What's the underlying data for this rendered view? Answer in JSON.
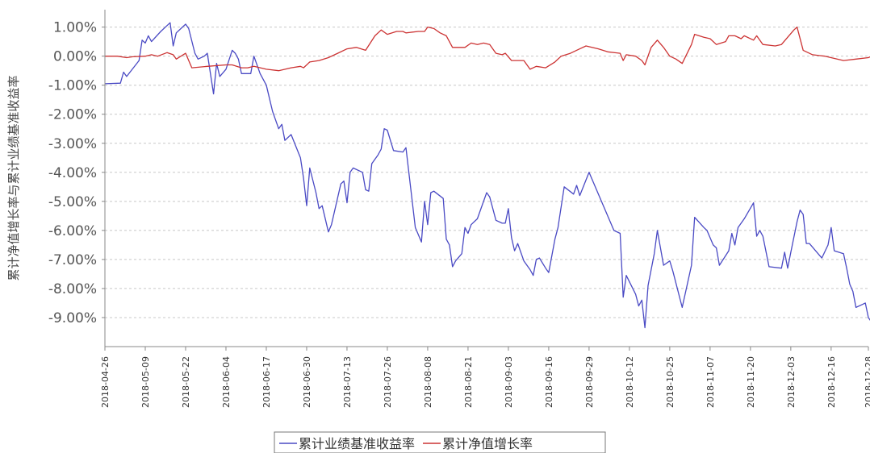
{
  "chart_data": {
    "type": "line",
    "title": "",
    "xlabel": "",
    "ylabel": "累计净值增长率与累计业绩基准收益率",
    "y_unit": "%",
    "ylim": [
      -10.0,
      1.6
    ],
    "grid": true,
    "legend_position": "bottom",
    "y_ticks": [
      "1.00%",
      "0.00%",
      "-1.00%",
      "-2.00%",
      "-3.00%",
      "-4.00%",
      "-5.00%",
      "-6.00%",
      "-7.00%",
      "-8.00%",
      "-9.00%"
    ],
    "y_tick_values": [
      1,
      0,
      -1,
      -2,
      -3,
      -4,
      -5,
      -6,
      -7,
      -8,
      -9
    ],
    "x_ticks": [
      "2018-04-26",
      "2018-05-09",
      "2018-05-22",
      "2018-06-04",
      "2018-06-17",
      "2018-06-30",
      "2018-07-13",
      "2018-07-26",
      "2018-08-08",
      "2018-08-21",
      "2018-09-03",
      "2018-09-16",
      "2018-09-29",
      "2018-10-12",
      "2018-10-25",
      "2018-11-07",
      "2018-11-20",
      "2018-12-03",
      "2018-12-16",
      "2018-12-28"
    ],
    "x_range": [
      "2018-04-26",
      "2018-12-28"
    ],
    "series": [
      {
        "name": "累计业绩基准收益率",
        "color": "#4a4ac4",
        "points": [
          [
            "2018-04-26",
            -0.95
          ],
          [
            "2018-05-01",
            -0.93
          ],
          [
            "2018-05-02",
            -0.55
          ],
          [
            "2018-05-03",
            -0.7
          ],
          [
            "2018-05-07",
            -0.15
          ],
          [
            "2018-05-08",
            0.55
          ],
          [
            "2018-05-09",
            0.45
          ],
          [
            "2018-05-10",
            0.7
          ],
          [
            "2018-05-11",
            0.5
          ],
          [
            "2018-05-14",
            0.85
          ],
          [
            "2018-05-17",
            1.15
          ],
          [
            "2018-05-18",
            0.35
          ],
          [
            "2018-05-19",
            0.8
          ],
          [
            "2018-05-21",
            1.0
          ],
          [
            "2018-05-22",
            1.1
          ],
          [
            "2018-05-23",
            0.95
          ],
          [
            "2018-05-25",
            0.1
          ],
          [
            "2018-05-26",
            -0.1
          ],
          [
            "2018-05-28",
            0.0
          ],
          [
            "2018-05-29",
            0.1
          ],
          [
            "2018-05-31",
            -1.3
          ],
          [
            "2018-06-01",
            -0.25
          ],
          [
            "2018-06-02",
            -0.7
          ],
          [
            "2018-06-04",
            -0.45
          ],
          [
            "2018-06-06",
            0.2
          ],
          [
            "2018-06-07",
            0.1
          ],
          [
            "2018-06-08",
            -0.1
          ],
          [
            "2018-06-09",
            -0.6
          ],
          [
            "2018-06-12",
            -0.6
          ],
          [
            "2018-06-13",
            0.0
          ],
          [
            "2018-06-15",
            -0.6
          ],
          [
            "2018-06-17",
            -1.0
          ],
          [
            "2018-06-19",
            -1.9
          ],
          [
            "2018-06-21",
            -2.5
          ],
          [
            "2018-06-22",
            -2.35
          ],
          [
            "2018-06-23",
            -2.9
          ],
          [
            "2018-06-25",
            -2.7
          ],
          [
            "2018-06-28",
            -3.5
          ],
          [
            "2018-06-29",
            -4.2
          ],
          [
            "2018-06-30",
            -5.15
          ],
          [
            "2018-07-01",
            -3.85
          ],
          [
            "2018-07-03",
            -4.7
          ],
          [
            "2018-07-04",
            -5.25
          ],
          [
            "2018-07-05",
            -5.15
          ],
          [
            "2018-07-07",
            -6.05
          ],
          [
            "2018-07-08",
            -5.8
          ],
          [
            "2018-07-11",
            -4.4
          ],
          [
            "2018-07-12",
            -4.3
          ],
          [
            "2018-07-13",
            -5.05
          ],
          [
            "2018-07-14",
            -4.0
          ],
          [
            "2018-07-15",
            -3.85
          ],
          [
            "2018-07-18",
            -4.0
          ],
          [
            "2018-07-19",
            -4.6
          ],
          [
            "2018-07-20",
            -4.65
          ],
          [
            "2018-07-21",
            -3.7
          ],
          [
            "2018-07-23",
            -3.4
          ],
          [
            "2018-07-24",
            -3.2
          ],
          [
            "2018-07-25",
            -2.5
          ],
          [
            "2018-07-26",
            -2.55
          ],
          [
            "2018-07-28",
            -3.25
          ],
          [
            "2018-07-31",
            -3.3
          ],
          [
            "2018-08-01",
            -3.15
          ],
          [
            "2018-08-04",
            -5.9
          ],
          [
            "2018-08-06",
            -6.4
          ],
          [
            "2018-08-07",
            -5.0
          ],
          [
            "2018-08-08",
            -5.8
          ],
          [
            "2018-08-09",
            -4.7
          ],
          [
            "2018-08-10",
            -4.65
          ],
          [
            "2018-08-13",
            -4.9
          ],
          [
            "2018-08-14",
            -6.3
          ],
          [
            "2018-08-15",
            -6.5
          ],
          [
            "2018-08-16",
            -7.25
          ],
          [
            "2018-08-17",
            -7.05
          ],
          [
            "2018-08-19",
            -6.8
          ],
          [
            "2018-08-20",
            -5.9
          ],
          [
            "2018-08-21",
            -6.1
          ],
          [
            "2018-08-22",
            -5.8
          ],
          [
            "2018-08-24",
            -5.6
          ],
          [
            "2018-08-27",
            -4.7
          ],
          [
            "2018-08-28",
            -4.85
          ],
          [
            "2018-08-30",
            -5.65
          ],
          [
            "2018-09-01",
            -5.75
          ],
          [
            "2018-09-02",
            -5.75
          ],
          [
            "2018-09-03",
            -5.25
          ],
          [
            "2018-09-04",
            -6.25
          ],
          [
            "2018-09-05",
            -6.7
          ],
          [
            "2018-09-06",
            -6.45
          ],
          [
            "2018-09-08",
            -7.05
          ],
          [
            "2018-09-10",
            -7.35
          ],
          [
            "2018-09-11",
            -7.55
          ],
          [
            "2018-09-12",
            -7.0
          ],
          [
            "2018-09-13",
            -6.95
          ],
          [
            "2018-09-15",
            -7.3
          ],
          [
            "2018-09-16",
            -7.45
          ],
          [
            "2018-09-18",
            -6.3
          ],
          [
            "2018-09-19",
            -5.9
          ],
          [
            "2018-09-21",
            -4.5
          ],
          [
            "2018-09-24",
            -4.75
          ],
          [
            "2018-09-25",
            -4.45
          ],
          [
            "2018-09-26",
            -4.8
          ],
          [
            "2018-09-29",
            -4.0
          ],
          [
            "2018-10-07",
            -6.0
          ],
          [
            "2018-10-09",
            -6.1
          ],
          [
            "2018-10-10",
            -8.3
          ],
          [
            "2018-10-11",
            -7.55
          ],
          [
            "2018-10-14",
            -8.2
          ],
          [
            "2018-10-15",
            -8.6
          ],
          [
            "2018-10-16",
            -8.4
          ],
          [
            "2018-10-17",
            -9.35
          ],
          [
            "2018-10-18",
            -7.9
          ],
          [
            "2018-10-20",
            -6.8
          ],
          [
            "2018-10-21",
            -6.0
          ],
          [
            "2018-10-23",
            -7.2
          ],
          [
            "2018-10-25",
            -7.05
          ],
          [
            "2018-10-26",
            -7.4
          ],
          [
            "2018-10-29",
            -8.65
          ],
          [
            "2018-11-01",
            -7.2
          ],
          [
            "2018-11-02",
            -5.55
          ],
          [
            "2018-11-05",
            -5.9
          ],
          [
            "2018-11-06",
            -6.0
          ],
          [
            "2018-11-08",
            -6.5
          ],
          [
            "2018-11-09",
            -6.6
          ],
          [
            "2018-11-10",
            -7.2
          ],
          [
            "2018-11-13",
            -6.7
          ],
          [
            "2018-11-14",
            -6.1
          ],
          [
            "2018-11-15",
            -6.5
          ],
          [
            "2018-11-16",
            -5.9
          ],
          [
            "2018-11-18",
            -5.6
          ],
          [
            "2018-11-21",
            -5.05
          ],
          [
            "2018-11-22",
            -6.2
          ],
          [
            "2018-11-23",
            -6.0
          ],
          [
            "2018-11-24",
            -6.2
          ],
          [
            "2018-11-26",
            -7.25
          ],
          [
            "2018-11-30",
            -7.3
          ],
          [
            "2018-12-01",
            -6.75
          ],
          [
            "2018-12-02",
            -7.3
          ],
          [
            "2018-12-03",
            -6.75
          ],
          [
            "2018-12-05",
            -5.7
          ],
          [
            "2018-12-06",
            -5.3
          ],
          [
            "2018-12-07",
            -5.45
          ],
          [
            "2018-12-08",
            -6.45
          ],
          [
            "2018-12-09",
            -6.45
          ],
          [
            "2018-12-13",
            -6.95
          ],
          [
            "2018-12-15",
            -6.5
          ],
          [
            "2018-12-16",
            -5.9
          ],
          [
            "2018-12-17",
            -6.7
          ],
          [
            "2018-12-20",
            -6.8
          ],
          [
            "2018-12-21",
            -7.3
          ],
          [
            "2018-12-22",
            -7.85
          ],
          [
            "2018-12-23",
            -8.1
          ],
          [
            "2018-12-24",
            -8.65
          ],
          [
            "2018-12-26",
            -8.55
          ],
          [
            "2018-12-27",
            -8.5
          ],
          [
            "2018-12-28",
            -9.0
          ],
          [
            "2018-12-29",
            -9.15
          ],
          [
            "2018-12-30",
            -8.8
          ]
        ]
      },
      {
        "name": "累计净值增长率",
        "color": "#cc3333",
        "points": [
          [
            "2018-04-26",
            0.0
          ],
          [
            "2018-04-30",
            0.0
          ],
          [
            "2018-05-03",
            -0.05
          ],
          [
            "2018-05-05",
            -0.02
          ],
          [
            "2018-05-09",
            0.0
          ],
          [
            "2018-05-11",
            0.05
          ],
          [
            "2018-05-13",
            0.0
          ],
          [
            "2018-05-16",
            0.12
          ],
          [
            "2018-05-18",
            0.05
          ],
          [
            "2018-05-19",
            -0.1
          ],
          [
            "2018-05-22",
            0.1
          ],
          [
            "2018-05-24",
            -0.4
          ],
          [
            "2018-05-29",
            -0.35
          ],
          [
            "2018-06-04",
            -0.3
          ],
          [
            "2018-06-06",
            -0.3
          ],
          [
            "2018-06-09",
            -0.4
          ],
          [
            "2018-06-11",
            -0.4
          ],
          [
            "2018-06-13",
            -0.35
          ],
          [
            "2018-06-17",
            -0.45
          ],
          [
            "2018-06-21",
            -0.5
          ],
          [
            "2018-06-25",
            -0.4
          ],
          [
            "2018-06-28",
            -0.35
          ],
          [
            "2018-06-29",
            -0.4
          ],
          [
            "2018-07-01",
            -0.2
          ],
          [
            "2018-07-04",
            -0.15
          ],
          [
            "2018-07-07",
            -0.05
          ],
          [
            "2018-07-10",
            0.1
          ],
          [
            "2018-07-13",
            0.25
          ],
          [
            "2018-07-16",
            0.3
          ],
          [
            "2018-07-19",
            0.2
          ],
          [
            "2018-07-22",
            0.7
          ],
          [
            "2018-07-24",
            0.9
          ],
          [
            "2018-07-26",
            0.75
          ],
          [
            "2018-07-29",
            0.85
          ],
          [
            "2018-07-31",
            0.85
          ],
          [
            "2018-08-01",
            0.8
          ],
          [
            "2018-08-05",
            0.85
          ],
          [
            "2018-08-07",
            0.85
          ],
          [
            "2018-08-08",
            1.0
          ],
          [
            "2018-08-10",
            0.95
          ],
          [
            "2018-08-12",
            0.8
          ],
          [
            "2018-08-14",
            0.7
          ],
          [
            "2018-08-16",
            0.3
          ],
          [
            "2018-08-20",
            0.3
          ],
          [
            "2018-08-22",
            0.45
          ],
          [
            "2018-08-24",
            0.4
          ],
          [
            "2018-08-26",
            0.45
          ],
          [
            "2018-08-28",
            0.4
          ],
          [
            "2018-08-30",
            0.1
          ],
          [
            "2018-09-01",
            0.05
          ],
          [
            "2018-09-02",
            0.1
          ],
          [
            "2018-09-04",
            -0.15
          ],
          [
            "2018-09-06",
            -0.15
          ],
          [
            "2018-09-08",
            -0.15
          ],
          [
            "2018-09-10",
            -0.45
          ],
          [
            "2018-09-12",
            -0.35
          ],
          [
            "2018-09-15",
            -0.4
          ],
          [
            "2018-09-18",
            -0.2
          ],
          [
            "2018-09-20",
            0.0
          ],
          [
            "2018-09-23",
            0.1
          ],
          [
            "2018-09-26",
            0.25
          ],
          [
            "2018-09-28",
            0.35
          ],
          [
            "2018-10-02",
            0.25
          ],
          [
            "2018-10-05",
            0.15
          ],
          [
            "2018-10-09",
            0.1
          ],
          [
            "2018-10-10",
            -0.15
          ],
          [
            "2018-10-11",
            0.05
          ],
          [
            "2018-10-14",
            0.0
          ],
          [
            "2018-10-16",
            -0.15
          ],
          [
            "2018-10-17",
            -0.3
          ],
          [
            "2018-10-19",
            0.3
          ],
          [
            "2018-10-21",
            0.55
          ],
          [
            "2018-10-23",
            0.3
          ],
          [
            "2018-10-25",
            0.0
          ],
          [
            "2018-10-27",
            -0.1
          ],
          [
            "2018-10-29",
            -0.25
          ],
          [
            "2018-11-01",
            0.4
          ],
          [
            "2018-11-02",
            0.75
          ],
          [
            "2018-11-05",
            0.65
          ],
          [
            "2018-11-07",
            0.6
          ],
          [
            "2018-11-09",
            0.4
          ],
          [
            "2018-11-12",
            0.5
          ],
          [
            "2018-11-13",
            0.7
          ],
          [
            "2018-11-15",
            0.7
          ],
          [
            "2018-11-17",
            0.6
          ],
          [
            "2018-11-18",
            0.7
          ],
          [
            "2018-11-21",
            0.55
          ],
          [
            "2018-11-22",
            0.7
          ],
          [
            "2018-11-24",
            0.4
          ],
          [
            "2018-11-28",
            0.35
          ],
          [
            "2018-11-30",
            0.4
          ],
          [
            "2018-12-04",
            0.9
          ],
          [
            "2018-12-05",
            1.0
          ],
          [
            "2018-12-07",
            0.2
          ],
          [
            "2018-12-10",
            0.05
          ],
          [
            "2018-12-14",
            0.0
          ],
          [
            "2018-12-20",
            -0.15
          ],
          [
            "2018-12-24",
            -0.1
          ],
          [
            "2018-12-28",
            -0.05
          ],
          [
            "2018-12-30",
            0.05
          ]
        ]
      }
    ]
  }
}
